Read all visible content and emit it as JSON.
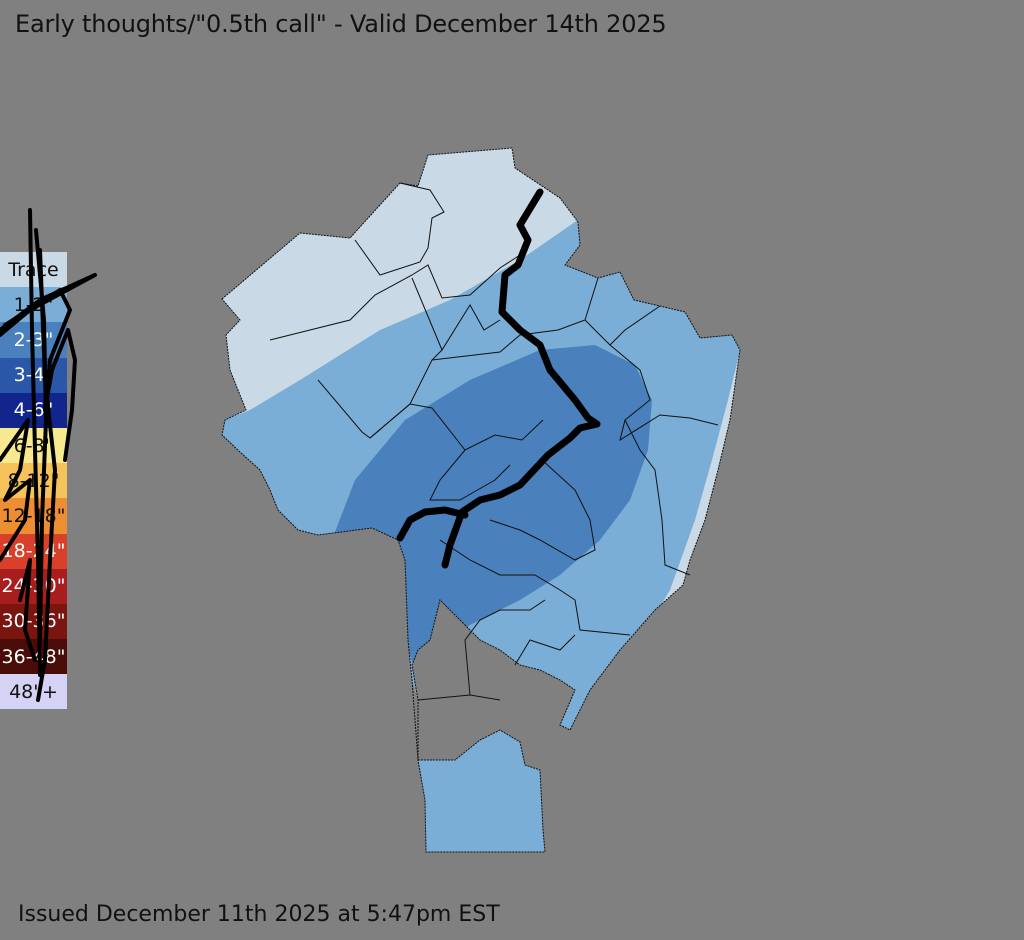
{
  "title": "Early thoughts/\"0.5th call\" - Valid December 14th 2025",
  "issued": "Issued December 11th 2025 at 5:47pm EST",
  "legend": [
    {
      "label": "Trace",
      "color": "#c9dae6"
    },
    {
      "label": "1-2\"",
      "color": "#7aaed6"
    },
    {
      "label": "2-3\"",
      "color": "#4a80bc"
    },
    {
      "label": "3-4\"",
      "color": "#2b57a8"
    },
    {
      "label": "4-6\"",
      "color": "#12258c"
    },
    {
      "label": "6-8\"",
      "color": "#f7e98f"
    },
    {
      "label": "8-12\"",
      "color": "#f6c35a"
    },
    {
      "label": "12-18\"",
      "color": "#ee8e32"
    },
    {
      "label": "18-24\"",
      "color": "#d9402a"
    },
    {
      "label": "24-30\"",
      "color": "#a81e1e"
    },
    {
      "label": "30-36\"",
      "color": "#7a1510"
    },
    {
      "label": "36-48\"",
      "color": "#4a0c08"
    },
    {
      "label": "48\"+",
      "color": "#d4d2f5"
    }
  ],
  "map_colors": {
    "background": "#808080",
    "trace": "#c9dae6",
    "one_to_two": "#7aaed6",
    "two_to_three": "#4a80bc",
    "boundary": "#111111",
    "rain_snow_line": "#000000"
  }
}
